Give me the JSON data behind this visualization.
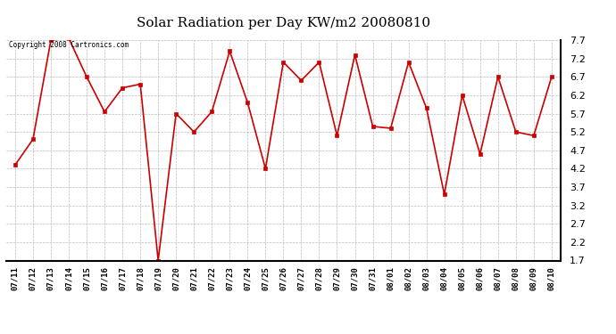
{
  "title": "Solar Radiation per Day KW/m2 20080810",
  "copyright_text": "Copyright 2008 Cartronics.com",
  "dates": [
    "07/11",
    "07/12",
    "07/13",
    "07/14",
    "07/15",
    "07/16",
    "07/17",
    "07/18",
    "07/19",
    "07/20",
    "07/21",
    "07/22",
    "07/23",
    "07/24",
    "07/25",
    "07/26",
    "07/27",
    "07/28",
    "07/29",
    "07/30",
    "07/31",
    "08/01",
    "08/02",
    "08/03",
    "08/04",
    "08/05",
    "08/06",
    "08/07",
    "08/08",
    "08/09",
    "08/10"
  ],
  "values": [
    4.3,
    5.0,
    7.7,
    7.75,
    6.7,
    5.75,
    6.4,
    6.5,
    1.7,
    5.7,
    5.2,
    5.75,
    7.4,
    6.0,
    4.2,
    7.1,
    6.6,
    7.1,
    5.1,
    7.3,
    5.35,
    5.3,
    7.1,
    5.85,
    3.5,
    6.2,
    4.6,
    6.7,
    5.2,
    5.1,
    6.7
  ],
  "line_color": "#cc0000",
  "marker_color": "#cc0000",
  "bg_color": "#ffffff",
  "grid_color": "#bbbbbb",
  "ylim": [
    1.7,
    7.7
  ],
  "yticks": [
    1.7,
    2.2,
    2.7,
    3.2,
    3.7,
    4.2,
    4.7,
    5.2,
    5.7,
    6.2,
    6.7,
    7.2,
    7.7
  ]
}
